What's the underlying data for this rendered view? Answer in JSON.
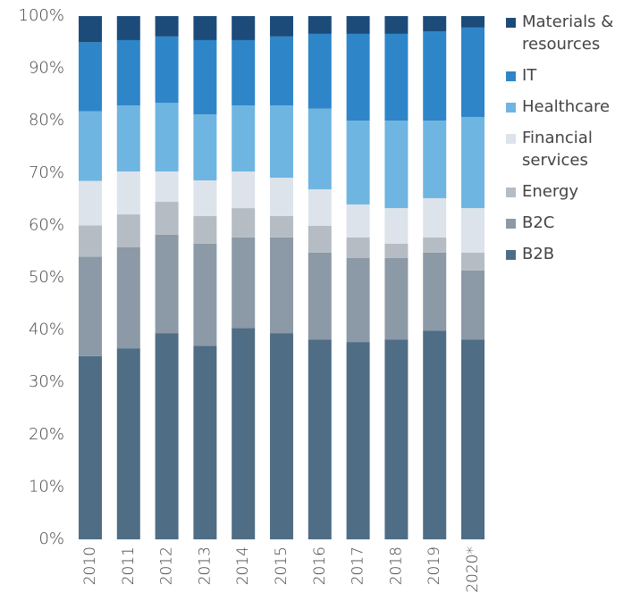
{
  "chart_data": {
    "type": "stacked_bar",
    "categories": [
      "2010",
      "2011",
      "2012",
      "2013",
      "2014",
      "2015",
      "2016",
      "2017",
      "2018",
      "2019",
      "2020*"
    ],
    "series": [
      {
        "name": "B2B",
        "color": "#4f6d85",
        "values": [
          35,
          36.5,
          39.4,
          37,
          40.4,
          39.4,
          38.2,
          37.7,
          38.2,
          39.9,
          38.2
        ]
      },
      {
        "name": "B2C",
        "color": "#8c99a6",
        "values": [
          19,
          19.3,
          18.8,
          19.5,
          17.3,
          18.3,
          16.6,
          16.1,
          15.6,
          14.9,
          13.2
        ]
      },
      {
        "name": "Energy",
        "color": "#b5bcc4",
        "values": [
          6,
          6.3,
          6.3,
          5.3,
          5.6,
          4.1,
          5.1,
          3.9,
          2.7,
          2.9,
          3.4
        ]
      },
      {
        "name": "Financial services",
        "color": "#dde3ea",
        "values": [
          8.5,
          8.2,
          5.8,
          6.8,
          7,
          7.3,
          7,
          6.3,
          6.8,
          7.5,
          8.5
        ]
      },
      {
        "name": "Healthcare",
        "color": "#6fb5e1",
        "values": [
          13.3,
          12.6,
          13.1,
          12.6,
          12.6,
          13.8,
          15.4,
          16,
          16.7,
          14.8,
          17.4
        ]
      },
      {
        "name": "IT",
        "color": "#2e86c8",
        "values": [
          13.2,
          12.5,
          12.7,
          14.2,
          12.5,
          13.2,
          14.3,
          16.6,
          16.6,
          17.1,
          17.1
        ]
      },
      {
        "name": "Materials & resources",
        "color": "#1c4b7a",
        "values": [
          5,
          4.6,
          3.9,
          4.6,
          4.6,
          3.9,
          3.4,
          3.4,
          3.4,
          2.9,
          2.2
        ]
      }
    ],
    "ylim": [
      0,
      100
    ],
    "yticks": [
      {
        "value": 0,
        "label": "0%"
      },
      {
        "value": 10,
        "label": "10%"
      },
      {
        "value": 20,
        "label": "20%"
      },
      {
        "value": 30,
        "label": "30%"
      },
      {
        "value": 40,
        "label": "40%"
      },
      {
        "value": 50,
        "label": "50%"
      },
      {
        "value": 60,
        "label": "60%"
      },
      {
        "value": 70,
        "label": "70%"
      },
      {
        "value": 80,
        "label": "80%"
      },
      {
        "value": 90,
        "label": "90%"
      },
      {
        "value": 100,
        "label": "100%"
      }
    ],
    "grid": false,
    "legend": "right"
  }
}
